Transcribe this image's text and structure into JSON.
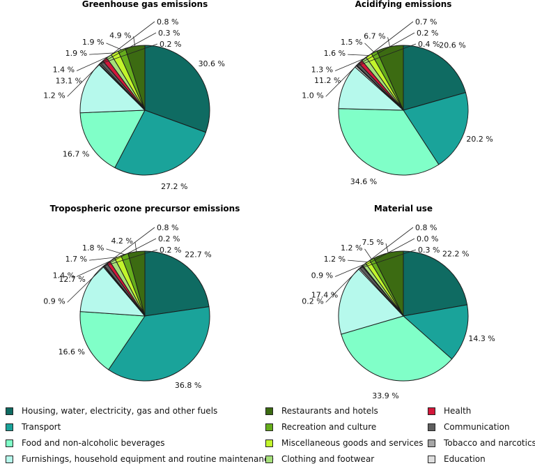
{
  "chart_data": [
    {
      "type": "pie",
      "title": "Greenhouse gas emissions",
      "unit": "%",
      "categories": [
        "Housing, water, electricity, gas and other fuels",
        "Transport",
        "Food and non-alcoholic beverages",
        "Furnishings, household equipment and routine maintenance",
        "Restaurants and hotels",
        "Recreation and culture",
        "Miscellaneous goods and services",
        "Clothing and footwear",
        "Health",
        "Communication",
        "Tobacco and narcotics",
        "Education"
      ],
      "values": [
        30.6,
        27.2,
        16.7,
        13.1,
        4.9,
        1.9,
        1.9,
        1.4,
        1.2,
        0.8,
        0.3,
        0.2
      ],
      "labels": [
        "30.6 %",
        "27.2 %",
        "16.7 %",
        "13.1 %",
        "4.9 %",
        "1.9 %",
        "1.9 %",
        "1.4 %",
        "1.2 %",
        "0.8 %",
        "0.3 %",
        "0.2 %"
      ]
    },
    {
      "type": "pie",
      "title": "Acidifying emissions",
      "unit": "%",
      "categories": [
        "Housing, water, electricity, gas and other fuels",
        "Transport",
        "Food and non-alcoholic beverages",
        "Furnishings, household equipment and routine maintenance",
        "Restaurants and hotels",
        "Recreation and culture",
        "Miscellaneous goods and services",
        "Clothing and footwear",
        "Health",
        "Communication",
        "Tobacco and narcotics",
        "Education"
      ],
      "values": [
        20.6,
        20.2,
        34.6,
        11.2,
        6.7,
        1.5,
        1.6,
        1.3,
        1.0,
        0.7,
        0.2,
        0.4
      ],
      "labels": [
        "20.6 %",
        "20.2 %",
        "34.6 %",
        "11.2 %",
        "6.7 %",
        "1.5 %",
        "1.6 %",
        "1.3 %",
        "1.0 %",
        "0.7 %",
        "0.2 %",
        "0.4 %"
      ]
    },
    {
      "type": "pie",
      "title": "Tropospheric ozone precursor emissions",
      "unit": "%",
      "categories": [
        "Housing, water, electricity, gas and other fuels",
        "Transport",
        "Food and non-alcoholic beverages",
        "Furnishings, household equipment and routine maintenance",
        "Restaurants and hotels",
        "Recreation and culture",
        "Miscellaneous goods and services",
        "Clothing and footwear",
        "Health",
        "Communication",
        "Tobacco and narcotics",
        "Education"
      ],
      "values": [
        22.7,
        36.8,
        16.6,
        12.7,
        4.2,
        1.8,
        1.7,
        1.4,
        0.9,
        0.8,
        0.2,
        0.2
      ],
      "labels": [
        "22.7 %",
        "36.8 %",
        "16.6 %",
        "12.7 %",
        "4.2 %",
        "1.8 %",
        "1.7 %",
        "1.4 %",
        "0.9 %",
        "0.8 %",
        "0.2 %",
        "0.2 %"
      ]
    },
    {
      "type": "pie",
      "title": "Material use",
      "unit": "%",
      "categories": [
        "Housing, water, electricity, gas and other fuels",
        "Transport",
        "Food and non-alcoholic beverages",
        "Furnishings, household equipment and routine maintenance",
        "Restaurants and hotels",
        "Recreation and culture",
        "Miscellaneous goods and services",
        "Clothing and footwear",
        "Health",
        "Communication",
        "Tobacco and narcotics",
        "Education"
      ],
      "values": [
        22.2,
        14.3,
        33.9,
        17.4,
        7.5,
        1.2,
        1.2,
        0.9,
        0.2,
        0.8,
        0.0,
        0.3
      ],
      "labels": [
        "22.2 %",
        "14.3 %",
        "33.9 %",
        "17.4 %",
        "7.5 %",
        "1.2 %",
        "1.2 %",
        "0.9 %",
        "0.2 %",
        "0.8 %",
        "0.0 %",
        "0.3 %"
      ]
    }
  ],
  "legend": {
    "items": [
      {
        "label": "Housing, water, electricity, gas and other fuels",
        "color": "#0f6b62"
      },
      {
        "label": "Transport",
        "color": "#1aa39a"
      },
      {
        "label": "Food and non-alcoholic beverages",
        "color": "#80ffc8"
      },
      {
        "label": "Furnishings, household equipment and routine maintenance",
        "color": "#b6f9ec"
      },
      {
        "label": "Restaurants and hotels",
        "color": "#3c6b12"
      },
      {
        "label": "Recreation and culture",
        "color": "#66ad1c"
      },
      {
        "label": "Miscellaneous goods and services",
        "color": "#c2f52c"
      },
      {
        "label": "Clothing and footwear",
        "color": "#a6e07a"
      },
      {
        "label": "Health",
        "color": "#d3173a"
      },
      {
        "label": "Communication",
        "color": "#5f5f5f"
      },
      {
        "label": "Tobacco and narcotics",
        "color": "#a6a6a6"
      },
      {
        "label": "Education",
        "color": "#dedede"
      }
    ]
  }
}
